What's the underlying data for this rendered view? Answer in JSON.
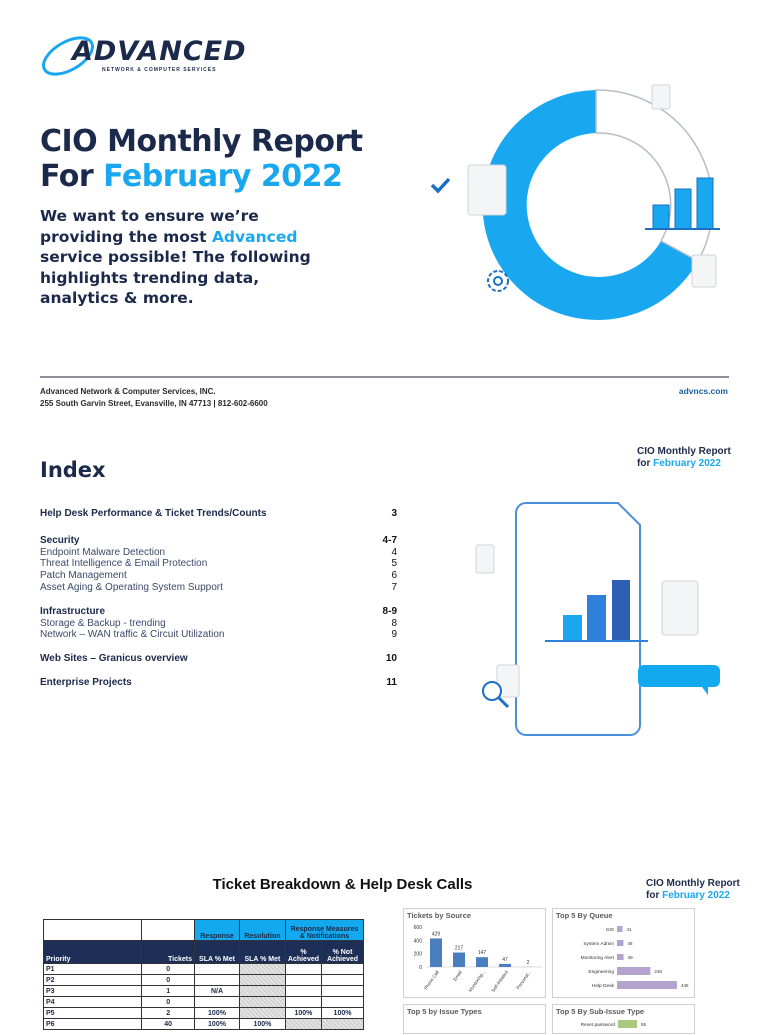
{
  "logo": {
    "word": "ADVANCED",
    "tagline": "NETWORK & COMPUTER SERVICES"
  },
  "cover": {
    "title_line1": "CIO Monthly Report",
    "title_prefix": "For ",
    "title_month": "February 2022",
    "intro_before": "We want to ensure we’re providing the most ",
    "intro_highlight": "Advanced",
    "intro_after": " service possible! The following highlights trending data, analytics & more."
  },
  "footer": {
    "company": "Advanced Network & Computer Services, INC.",
    "address": "255 South Garvin Street, Evansville, IN 47713  |  812-602-6600",
    "website": "advncs.com"
  },
  "report_tag": {
    "line1": "CIO Monthly Report",
    "prefix": "for ",
    "month": "February 2022"
  },
  "report_tag2": {
    "line1": "CIO Monthly Report",
    "prefix": "for ",
    "month": "February 2022"
  },
  "index": {
    "title": "Index",
    "entries": [
      {
        "label": "Help Desk Performance & Ticket Trends/Counts",
        "page": "3",
        "type": "h"
      },
      {
        "label": "Security",
        "page": "4-7",
        "type": "h"
      },
      {
        "label": "Endpoint Malware Detection",
        "page": "4",
        "type": "s"
      },
      {
        "label": "Threat Intelligence & Email Protection",
        "page": "5",
        "type": "s"
      },
      {
        "label": "Patch Management",
        "page": "6",
        "type": "s"
      },
      {
        "label": "Asset Aging & Operating System Support",
        "page": "7",
        "type": "s"
      },
      {
        "label": "Infrastructure",
        "page": "8-9",
        "type": "h"
      },
      {
        "label": "Storage & Backup - trending",
        "page": "8",
        "type": "s"
      },
      {
        "label": "Network – WAN traffic & Circuit Utilization",
        "page": "9",
        "type": "s"
      },
      {
        "label": "Web Sites – Granicus overview",
        "page": "10",
        "type": "h"
      },
      {
        "label": "Enterprise Projects",
        "page": "11",
        "type": "h"
      }
    ]
  },
  "breakdown": {
    "title": "Ticket Breakdown & Help Desk Calls",
    "table": {
      "group_headers": {
        "response": "Response",
        "resolution": "Resolution",
        "measures": "Response Measures & Notifications"
      },
      "columns": [
        "Priority",
        "Tickets",
        "SLA % Met",
        "SLA % Met",
        "% Achieved",
        "% Not Achieved"
      ],
      "rows": [
        [
          "P1",
          "0",
          "",
          "",
          "",
          ""
        ],
        [
          "P2",
          "0",
          "",
          "",
          "",
          ""
        ],
        [
          "P3",
          "1",
          "N/A",
          "",
          "",
          ""
        ],
        [
          "P4",
          "0",
          "",
          "",
          "",
          ""
        ],
        [
          "P5",
          "2",
          "100%",
          "",
          "100%",
          "100%"
        ],
        [
          "P6",
          "40",
          "100%",
          "100%",
          "",
          ""
        ]
      ]
    }
  },
  "chart_data": [
    {
      "type": "bar",
      "title": "Tickets by Source",
      "categories": [
        "Phone Call",
        "Email",
        "Monitoring...",
        "Self-Initiated",
        "Personal..."
      ],
      "values": [
        429,
        217,
        147,
        47,
        2
      ],
      "ylim": [
        0,
        600
      ],
      "yticks": [
        "0",
        "200",
        "400",
        "600"
      ],
      "color": "#4a7ebf"
    },
    {
      "type": "bar",
      "orientation": "horizontal",
      "title": "Top 5 By Queue",
      "categories": [
        "GIS",
        "System Admin",
        "Monitoring Alert",
        "Engineering",
        "Help Desk"
      ],
      "values": [
        41,
        48,
        49,
        248,
        446
      ],
      "color": "#b4a2cf"
    },
    {
      "type": "bar",
      "title": "Top 5 by Issue Types"
    },
    {
      "type": "bar",
      "orientation": "horizontal",
      "title": "Top 5 By Sub-Issue Type",
      "categories": [
        "Reset password"
      ],
      "values": [
        55
      ],
      "color": "#a9c97e"
    }
  ],
  "colors": {
    "navy": "#1b2a4a",
    "accent": "#19a7f0",
    "table_header": "#1d2e57"
  }
}
